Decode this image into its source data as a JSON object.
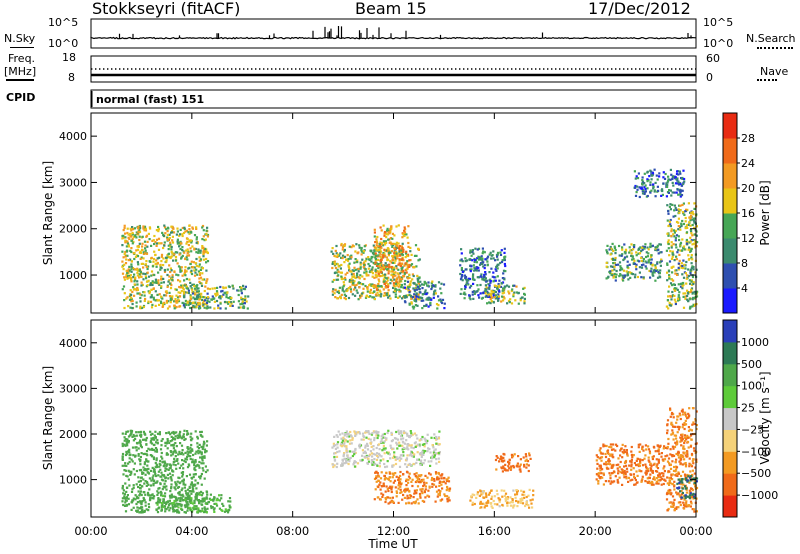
{
  "header": {
    "station": "Stokkseyri (fitACF)",
    "beam": "Beam 15",
    "date": "17/Dec/2012"
  },
  "strips": {
    "nsky_label": "N.Sky",
    "nsky_ticks": [
      "10^5",
      "10^0"
    ],
    "nsearch_label": "N.Search",
    "nsearch_ticks": [
      "10^5",
      "10^0"
    ],
    "freq_label": "Freq.",
    "freq_unit": "[MHz]",
    "freq_ticks": [
      "18",
      "8"
    ],
    "nave_label": "Nave",
    "nave_ticks": [
      "60",
      "0"
    ],
    "cpid_label": "CPID",
    "cpid_value": "normal (fast) 151"
  },
  "chart_data": [
    {
      "type": "heatmap",
      "name": "power",
      "ylabel": "Slant Range [km]",
      "ylim": [
        180,
        4500
      ],
      "y_ticks": [
        "1000",
        "2000",
        "3000",
        "4000"
      ],
      "x_ticks": [
        "00:00",
        "04:00",
        "08:00",
        "12:00",
        "16:00",
        "20:00",
        "00:00"
      ],
      "colorbar_label": "Power [dB]",
      "colorbar_ticks": [
        "4",
        "8",
        "12",
        "16",
        "20",
        "24",
        "28"
      ],
      "colorbar_colors": [
        "#1a1aff",
        "#2e4fb0",
        "#3b8a6e",
        "#46a655",
        "#e8c516",
        "#f39a22",
        "#f06a19",
        "#e82b12"
      ],
      "clusters": [
        {
          "t": [
            1.2,
            4.6
          ],
          "r": [
            300,
            2100
          ],
          "v": 17
        },
        {
          "t": [
            3.6,
            6.2
          ],
          "r": [
            300,
            800
          ],
          "v": 13
        },
        {
          "t": [
            9.5,
            13.0
          ],
          "r": [
            500,
            1700
          ],
          "v": 16
        },
        {
          "t": [
            11.2,
            12.6
          ],
          "r": [
            700,
            2100
          ],
          "v": 20
        },
        {
          "t": [
            12.4,
            14.0
          ],
          "r": [
            300,
            900
          ],
          "v": 10
        },
        {
          "t": [
            14.6,
            16.4
          ],
          "r": [
            500,
            1600
          ],
          "v": 9
        },
        {
          "t": [
            15.6,
            17.2
          ],
          "r": [
            400,
            800
          ],
          "v": 14
        },
        {
          "t": [
            20.4,
            22.6
          ],
          "r": [
            900,
            1700
          ],
          "v": 12
        },
        {
          "t": [
            22.8,
            24.0
          ],
          "r": [
            300,
            2600
          ],
          "v": 14
        },
        {
          "t": [
            21.5,
            23.5
          ],
          "r": [
            2700,
            3300
          ],
          "v": 9
        }
      ]
    },
    {
      "type": "heatmap",
      "name": "velocity",
      "ylabel": "Slant Range [km]",
      "ylim": [
        180,
        4500
      ],
      "y_ticks": [
        "1000",
        "2000",
        "3000",
        "4000"
      ],
      "x_ticks": [
        "00:00",
        "04:00",
        "08:00",
        "12:00",
        "16:00",
        "20:00",
        "00:00"
      ],
      "xlabel": "Time UT",
      "colorbar_label": "Velocity [m s⁻¹]",
      "colorbar_ticks": [
        "1000",
        "500",
        "100",
        "25",
        "−25",
        "−100",
        "−500",
        "−1000"
      ],
      "colorbar_colors": [
        "#2a3fb8",
        "#2d7a55",
        "#4fa84a",
        "#5ecb3a",
        "#c8c8c8",
        "#f5d27a",
        "#f39a22",
        "#f06a19",
        "#e82b12"
      ],
      "clusters": [
        {
          "t": [
            1.2,
            4.6
          ],
          "r": [
            300,
            2100
          ],
          "v": 150
        },
        {
          "t": [
            2.5,
            5.5
          ],
          "r": [
            300,
            700
          ],
          "v": 80
        },
        {
          "t": [
            9.5,
            13.8
          ],
          "r": [
            1300,
            2100
          ],
          "v": 0
        },
        {
          "t": [
            11.2,
            14.2
          ],
          "r": [
            500,
            1200
          ],
          "v": -300
        },
        {
          "t": [
            15.0,
            17.5
          ],
          "r": [
            400,
            800
          ],
          "v": -60
        },
        {
          "t": [
            16.0,
            17.4
          ],
          "r": [
            1200,
            1600
          ],
          "v": -400
        },
        {
          "t": [
            20.0,
            22.8
          ],
          "r": [
            900,
            1800
          ],
          "v": -350
        },
        {
          "t": [
            22.8,
            24.0
          ],
          "r": [
            300,
            2600
          ],
          "v": -300
        },
        {
          "t": [
            23.2,
            24.0
          ],
          "r": [
            600,
            1100
          ],
          "v": 600
        }
      ]
    }
  ]
}
